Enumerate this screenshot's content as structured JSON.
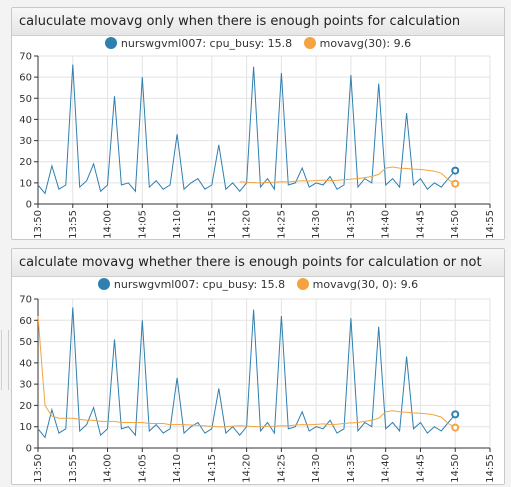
{
  "colors": {
    "series": "#2f7fb0",
    "avg": "#f4a340"
  },
  "charts": [
    {
      "title": "caluculate movavg only when there is enough points for calculation",
      "legend": [
        {
          "label": "nurswgvml007: cpu_busy: 15.8",
          "color": "#2f7fb0"
        },
        {
          "label": "movavg(30): 9.6",
          "color": "#f4a340"
        }
      ]
    },
    {
      "title": "calculate movavg whether there is enough points for calculation or not",
      "legend": [
        {
          "label": "nurswgvml007: cpu_busy: 15.8",
          "color": "#2f7fb0"
        },
        {
          "label": "movavg(30, 0): 9.6",
          "color": "#f4a340"
        }
      ]
    }
  ],
  "chart_data": [
    {
      "type": "line",
      "title": "caluculate movavg only when there is enough points for calculation",
      "ylim": [
        0,
        70
      ],
      "yticks": [
        0,
        10,
        20,
        30,
        40,
        50,
        60,
        70
      ],
      "xlim": [
        "13:50",
        "14:55"
      ],
      "xtick_labels": [
        "13:50",
        "13:55",
        "14:00",
        "14:05",
        "14:10",
        "14:15",
        "14:20",
        "14:25",
        "14:30",
        "14:35",
        "14:40",
        "14:45",
        "14:50",
        "14:55"
      ],
      "x": [
        "13:50",
        "13:51",
        "13:52",
        "13:53",
        "13:54",
        "13:55",
        "13:56",
        "13:57",
        "13:58",
        "13:59",
        "14:00",
        "14:01",
        "14:02",
        "14:03",
        "14:04",
        "14:05",
        "14:06",
        "14:07",
        "14:08",
        "14:09",
        "14:10",
        "14:11",
        "14:12",
        "14:13",
        "14:14",
        "14:15",
        "14:16",
        "14:17",
        "14:18",
        "14:19",
        "14:20",
        "14:21",
        "14:22",
        "14:23",
        "14:24",
        "14:25",
        "14:26",
        "14:27",
        "14:28",
        "14:29",
        "14:30",
        "14:31",
        "14:32",
        "14:33",
        "14:34",
        "14:35",
        "14:36",
        "14:37",
        "14:38",
        "14:39",
        "14:40",
        "14:41",
        "14:42",
        "14:43",
        "14:44",
        "14:45",
        "14:46",
        "14:47",
        "14:48",
        "14:49",
        "14:50"
      ],
      "series": [
        {
          "name": "nurswgvml007: cpu_busy",
          "values": [
            9,
            5,
            18,
            7,
            9,
            66,
            8,
            11,
            19,
            6,
            9,
            51,
            9,
            10,
            6,
            60,
            8,
            11,
            7,
            9,
            33,
            7,
            10,
            12,
            7,
            9,
            28,
            7,
            10,
            6,
            10,
            65,
            8,
            12,
            7,
            62,
            9,
            10,
            17,
            8,
            10,
            9,
            13,
            7,
            9,
            61,
            8,
            12,
            10,
            57,
            9,
            12,
            8,
            43,
            9,
            12,
            7,
            10,
            8,
            12,
            15.8
          ]
        },
        {
          "name": "movavg(30)",
          "values": [
            null,
            null,
            null,
            null,
            null,
            null,
            null,
            null,
            null,
            null,
            null,
            null,
            null,
            null,
            null,
            null,
            null,
            null,
            null,
            null,
            null,
            null,
            null,
            null,
            null,
            null,
            null,
            null,
            null,
            10.5,
            10.3,
            10.1,
            10.0,
            10.2,
            10.3,
            10.5,
            10.4,
            10.8,
            11.0,
            10.9,
            11.1,
            11.3,
            11.0,
            11.2,
            11.5,
            11.8,
            12.0,
            12.5,
            13.0,
            14.0,
            17.0,
            17.5,
            17.0,
            16.8,
            16.5,
            16.3,
            16.0,
            15.5,
            14.5,
            11.5,
            9.6
          ]
        }
      ]
    },
    {
      "type": "line",
      "title": "calculate movavg whether there is enough points for calculation or not",
      "ylim": [
        0,
        70
      ],
      "yticks": [
        0,
        10,
        20,
        30,
        40,
        50,
        60,
        70
      ],
      "xlim": [
        "13:50",
        "14:55"
      ],
      "xtick_labels": [
        "13:50",
        "13:55",
        "14:00",
        "14:05",
        "14:10",
        "14:15",
        "14:20",
        "14:25",
        "14:30",
        "14:35",
        "14:40",
        "14:45",
        "14:50",
        "14:55"
      ],
      "x": [
        "13:50",
        "13:51",
        "13:52",
        "13:53",
        "13:54",
        "13:55",
        "13:56",
        "13:57",
        "13:58",
        "13:59",
        "14:00",
        "14:01",
        "14:02",
        "14:03",
        "14:04",
        "14:05",
        "14:06",
        "14:07",
        "14:08",
        "14:09",
        "14:10",
        "14:11",
        "14:12",
        "14:13",
        "14:14",
        "14:15",
        "14:16",
        "14:17",
        "14:18",
        "14:19",
        "14:20",
        "14:21",
        "14:22",
        "14:23",
        "14:24",
        "14:25",
        "14:26",
        "14:27",
        "14:28",
        "14:29",
        "14:30",
        "14:31",
        "14:32",
        "14:33",
        "14:34",
        "14:35",
        "14:36",
        "14:37",
        "14:38",
        "14:39",
        "14:40",
        "14:41",
        "14:42",
        "14:43",
        "14:44",
        "14:45",
        "14:46",
        "14:47",
        "14:48",
        "14:49",
        "14:50"
      ],
      "series": [
        {
          "name": "nurswgvml007: cpu_busy",
          "values": [
            9,
            5,
            18,
            7,
            9,
            66,
            8,
            11,
            19,
            6,
            9,
            51,
            9,
            10,
            6,
            60,
            8,
            11,
            7,
            9,
            33,
            7,
            10,
            12,
            7,
            9,
            28,
            7,
            10,
            6,
            10,
            65,
            8,
            12,
            7,
            62,
            9,
            10,
            17,
            8,
            10,
            9,
            13,
            7,
            9,
            61,
            8,
            12,
            10,
            57,
            9,
            12,
            8,
            43,
            9,
            12,
            7,
            10,
            8,
            12,
            15.8
          ]
        },
        {
          "name": "movavg(30, 0)",
          "values": [
            62,
            20,
            15,
            14,
            14,
            14,
            13.5,
            13,
            13,
            12.5,
            12.5,
            12.5,
            12,
            12,
            12,
            12,
            11.5,
            11.5,
            11.5,
            11,
            11,
            11,
            10.8,
            10.6,
            10.4,
            10.2,
            10,
            10,
            10.3,
            10.5,
            10.3,
            10.1,
            10.0,
            10.2,
            10.3,
            10.5,
            10.4,
            10.8,
            11.0,
            10.9,
            11.1,
            11.3,
            11.0,
            11.2,
            11.5,
            11.8,
            12.0,
            12.5,
            13.0,
            14.0,
            17.0,
            17.5,
            17.0,
            16.8,
            16.5,
            16.3,
            16.0,
            15.5,
            14.5,
            11.5,
            9.6
          ]
        }
      ]
    }
  ]
}
